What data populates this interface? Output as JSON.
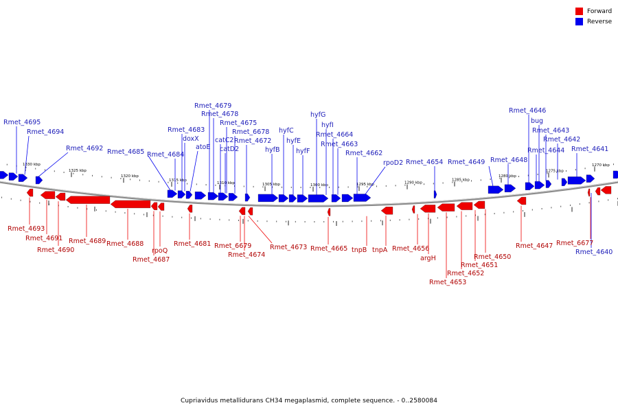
{
  "footer": "Cupriavidus metallidurans CH34 megaplasmid, complete sequence. - 0..2580084",
  "legend": {
    "forward": {
      "label": "Forward",
      "color": "#ee0000"
    },
    "reverse": {
      "label": "Reverse",
      "color": "#0000ee"
    }
  },
  "colors": {
    "forward": "#ee0000",
    "reverse": "#0000ee",
    "backbone": "#777777"
  },
  "ticks": [
    "1330 kbp",
    "1325 kbp",
    "1320 kbp",
    "1315 kbp",
    "1310 kbp",
    "1305 kbp",
    "1300 kbp",
    "1295 kbp",
    "1290 kbp",
    "1285 kbp",
    "1280 kbp",
    "1275 kbp",
    "1270 kbp"
  ],
  "reverse_labels": [
    "Rmet_4695",
    "Rmet_4694",
    "Rmet_4692",
    "Rmet_4685",
    "Rmet_4684",
    "Rmet_4683",
    "doxX",
    "atoE",
    "Rmet_4679",
    "Rmet_4678",
    "catC2",
    "Rmet_4675",
    "catD2",
    "Rmet_6678",
    "Rmet_4672",
    "hyfB",
    "hyfC",
    "hyfE",
    "hyfF",
    "hyfG",
    "hyfI",
    "Rmet_4664",
    "Rmet_4663",
    "Rmet_4662",
    "rpoD2",
    "Rmet_4654",
    "Rmet_4649",
    "Rmet_4648",
    "Rmet_4646",
    "bug",
    "Rmet_4643",
    "Rmet_4642",
    "Rmet_4644",
    "Rmet_4641",
    "Rmet_4640"
  ],
  "forward_labels": [
    "Rmet_4693",
    "Rmet_4691",
    "Rmet_4690",
    "Rmet_4689",
    "Rmet_4688",
    "Rmet_4687",
    "rpoQ",
    "Rmet_4681",
    "Rmet_6679",
    "Rmet_4674",
    "Rmet_4673",
    "Rmet_4665",
    "tnpB",
    "tnpA",
    "Rmet_4656",
    "argH",
    "Rmet_4653",
    "Rmet_4652",
    "Rmet_4651",
    "Rmet_4650",
    "Rmet_4647",
    "Rmet_6677"
  ]
}
